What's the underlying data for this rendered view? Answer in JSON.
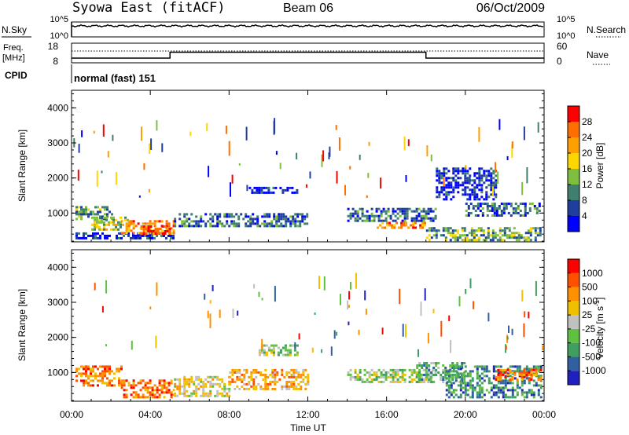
{
  "header": {
    "title": "Syowa East (fitACF)",
    "beam": "Beam 06",
    "date": "06/Oct/2009"
  },
  "strip_labels": {
    "nsky": "N.Sky",
    "nsearch": "N.Search",
    "freq": "Freq.",
    "freq_unit": "[MHz]",
    "nave": "Nave",
    "cpid": "CPID",
    "cpid_value": "normal (fast) 151"
  },
  "strip_ticks": {
    "noise_left": [
      "10^5",
      "10^0"
    ],
    "noise_right": [
      "10^5",
      "10^0"
    ],
    "freq_left": [
      "18",
      "8"
    ],
    "nave_right": [
      "60",
      "0"
    ]
  },
  "colors": {
    "power": [
      "#0000ff",
      "#1f3f9f",
      "#3f7f6f",
      "#7fbf3f",
      "#ffd700",
      "#ff9f00",
      "#ff6f00",
      "#ff0000"
    ],
    "velocity": [
      "#2020c0",
      "#3060a0",
      "#3f9f5f",
      "#60c040",
      "#c0c0c0",
      "#f0c000",
      "#ff9000",
      "#ff5000",
      "#ff0000"
    ]
  },
  "chart_data": [
    {
      "type": "heatmap",
      "name": "power",
      "ylabel": "Slant Range [km]",
      "ylim": [
        180,
        4500
      ],
      "yticks": [
        "1000",
        "2000",
        "3000",
        "4000"
      ],
      "xlim": [
        0,
        24
      ],
      "colorbar_label": "Power [dB]",
      "colorbar_ticks": [
        "28",
        "24",
        "20",
        "16",
        "12",
        "8",
        "4"
      ],
      "colorbar_range": [
        0,
        30
      ],
      "regions": [
        {
          "t0": 0.2,
          "t1": 5.2,
          "r0": 280,
          "r1": 450,
          "level": 1
        },
        {
          "t0": 0.2,
          "t1": 2.0,
          "r0": 800,
          "r1": 1200,
          "level": 3
        },
        {
          "t0": 1.0,
          "t1": 3.0,
          "r0": 500,
          "r1": 900,
          "level": 4
        },
        {
          "t0": 2.5,
          "t1": 5.2,
          "r0": 400,
          "r1": 800,
          "level": 6
        },
        {
          "t0": 3.5,
          "t1": 5.0,
          "r0": 420,
          "r1": 650,
          "level": 7
        },
        {
          "t0": 5.2,
          "t1": 12.0,
          "r0": 600,
          "r1": 1000,
          "level": 2
        },
        {
          "t0": 9.0,
          "t1": 11.5,
          "r0": 1600,
          "r1": 1750,
          "level": 1
        },
        {
          "t0": 14.0,
          "t1": 18.5,
          "r0": 750,
          "r1": 1150,
          "level": 2
        },
        {
          "t0": 15.5,
          "t1": 18.0,
          "r0": 550,
          "r1": 750,
          "level": 6
        },
        {
          "t0": 18.0,
          "t1": 23.8,
          "r0": 250,
          "r1": 600,
          "level": 3
        },
        {
          "t0": 20.0,
          "t1": 23.8,
          "r0": 900,
          "r1": 1300,
          "level": 2
        },
        {
          "t0": 18.5,
          "t1": 21.5,
          "r0": 1400,
          "r1": 2300,
          "level": 1
        }
      ]
    },
    {
      "type": "heatmap",
      "name": "velocity",
      "ylabel": "Slant Range [km]",
      "ylim": [
        180,
        4500
      ],
      "yticks": [
        "1000",
        "2000",
        "3000",
        "4000"
      ],
      "xlim": [
        0,
        24
      ],
      "xticks": [
        "00:00",
        "04:00",
        "08:00",
        "12:00",
        "16:00",
        "20:00",
        "00:00"
      ],
      "xlabel": "Time UT",
      "colorbar_label": "Velocity [m s^-1]",
      "colorbar_ticks": [
        "1000",
        "500",
        "100",
        "25",
        "-25",
        "-100",
        "-500",
        "-1000"
      ],
      "colorbar_range": [
        -1000,
        1000
      ],
      "regions": [
        {
          "t0": 0.2,
          "t1": 2.5,
          "r0": 600,
          "r1": 1200,
          "level": 7
        },
        {
          "t0": 2.5,
          "t1": 5.2,
          "r0": 300,
          "r1": 800,
          "level": 7
        },
        {
          "t0": 5.2,
          "t1": 8.0,
          "r0": 300,
          "r1": 900,
          "level": 5
        },
        {
          "t0": 8.0,
          "t1": 12.0,
          "r0": 500,
          "r1": 1100,
          "level": 6
        },
        {
          "t0": 9.5,
          "t1": 11.5,
          "r0": 1500,
          "r1": 1800,
          "level": 4
        },
        {
          "t0": 14.0,
          "t1": 18.5,
          "r0": 700,
          "r1": 1100,
          "level": 4
        },
        {
          "t0": 17.5,
          "t1": 20.0,
          "r0": 700,
          "r1": 1300,
          "level": 3
        },
        {
          "t0": 19.0,
          "t1": 23.8,
          "r0": 300,
          "r1": 1200,
          "level": 2
        },
        {
          "t0": 21.5,
          "t1": 23.8,
          "r0": 800,
          "r1": 1100,
          "level": 7
        }
      ]
    }
  ]
}
